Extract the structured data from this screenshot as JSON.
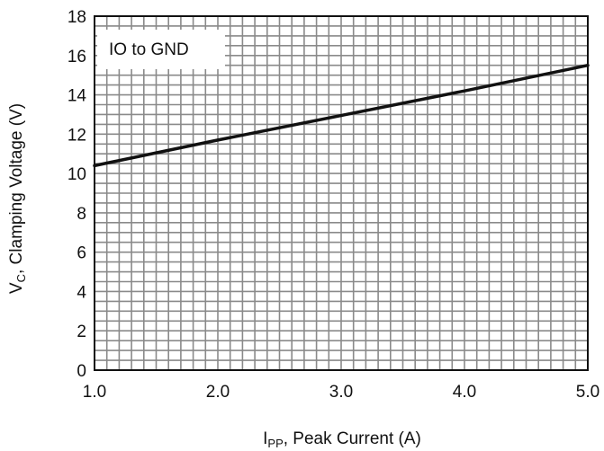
{
  "chart_data": {
    "type": "line",
    "title": "",
    "annotation": "IO to GND",
    "xlabel": {
      "main": "I",
      "sub": "PP",
      "rest": ", Peak Current (A)"
    },
    "ylabel": {
      "main": "V",
      "sub": "C",
      "rest": ", Clamping Voltage (V)"
    },
    "xlim": [
      1.0,
      5.0
    ],
    "ylim": [
      0,
      18
    ],
    "x_ticks": [
      "1.0",
      "2.0",
      "3.0",
      "4.0",
      "5.0"
    ],
    "y_ticks": [
      "0",
      "2",
      "4",
      "6",
      "8",
      "10",
      "12",
      "14",
      "16",
      "18"
    ],
    "grid": true,
    "series": [
      {
        "x": [
          1.0,
          2.0,
          3.0,
          4.0,
          5.0
        ],
        "y": [
          10.4,
          11.7,
          12.95,
          14.2,
          15.5
        ]
      }
    ],
    "colors": {
      "line": "#111111",
      "grid": "#8a8a8a",
      "frame": "#111111"
    }
  }
}
